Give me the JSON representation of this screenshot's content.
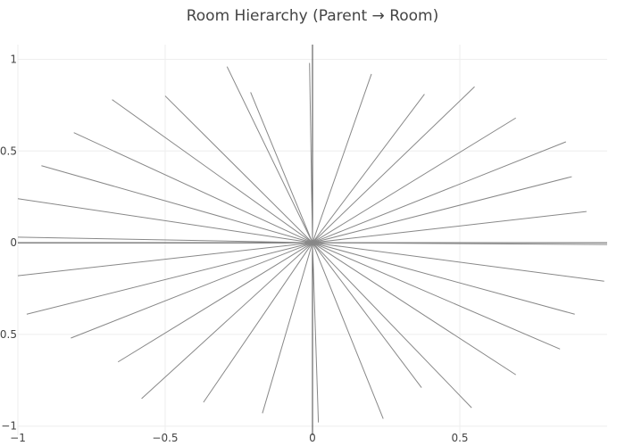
{
  "title": "Room Hierarchy (Parent → Room)",
  "colors": {
    "background": "#ffffff",
    "grid": "#eeeeee",
    "edge": "#888888",
    "axis_line": "#444444",
    "text": "#444444"
  },
  "chart_data": {
    "type": "scatter",
    "mode": "lines",
    "title": "Room Hierarchy (Parent → Room)",
    "xlabel": "",
    "ylabel": "",
    "xlim": [
      -1.0,
      1.0
    ],
    "ylim": [
      -1.05,
      1.08
    ],
    "x_ticks": [
      {
        "value": -1,
        "label": "−1"
      },
      {
        "value": -0.5,
        "label": "−0.5"
      },
      {
        "value": 0,
        "label": "0"
      },
      {
        "value": 0.5,
        "label": "0.5"
      }
    ],
    "y_ticks": [
      {
        "value": 1,
        "label": "1"
      },
      {
        "value": 0.5,
        "label": "0.5"
      },
      {
        "value": 0,
        "label": "0"
      },
      {
        "value": -0.5,
        "label": "−0.5"
      },
      {
        "value": -1,
        "label": "−1"
      }
    ],
    "grid": true,
    "legend": false,
    "center": [
      0,
      0
    ],
    "edges": [
      {
        "x": 1.0,
        "y": 0.0
      },
      {
        "x": 0.93,
        "y": 0.17
      },
      {
        "x": 0.88,
        "y": 0.36
      },
      {
        "x": 0.86,
        "y": 0.55
      },
      {
        "x": 0.69,
        "y": 0.68
      },
      {
        "x": 0.55,
        "y": 0.85
      },
      {
        "x": 0.38,
        "y": 0.81
      },
      {
        "x": 0.2,
        "y": 0.92
      },
      {
        "x": -0.01,
        "y": 0.98
      },
      {
        "x": -0.21,
        "y": 0.82
      },
      {
        "x": -0.29,
        "y": 0.96
      },
      {
        "x": -0.5,
        "y": 0.8
      },
      {
        "x": -0.68,
        "y": 0.78
      },
      {
        "x": -0.81,
        "y": 0.6
      },
      {
        "x": -0.92,
        "y": 0.42
      },
      {
        "x": -1.0,
        "y": 0.24
      },
      {
        "x": -1.0,
        "y": 0.03
      },
      {
        "x": -1.0,
        "y": -0.18
      },
      {
        "x": -0.97,
        "y": -0.39
      },
      {
        "x": -0.82,
        "y": -0.52
      },
      {
        "x": -0.66,
        "y": -0.65
      },
      {
        "x": -0.58,
        "y": -0.85
      },
      {
        "x": -0.37,
        "y": -0.87
      },
      {
        "x": -0.17,
        "y": -0.93
      },
      {
        "x": 0.02,
        "y": -0.98
      },
      {
        "x": 0.24,
        "y": -0.96
      },
      {
        "x": 0.37,
        "y": -0.79
      },
      {
        "x": 0.54,
        "y": -0.9
      },
      {
        "x": 0.69,
        "y": -0.72
      },
      {
        "x": 0.84,
        "y": -0.58
      },
      {
        "x": 0.89,
        "y": -0.39
      },
      {
        "x": 0.99,
        "y": -0.21
      },
      {
        "x": 1.0,
        "y": -0.01
      }
    ]
  }
}
